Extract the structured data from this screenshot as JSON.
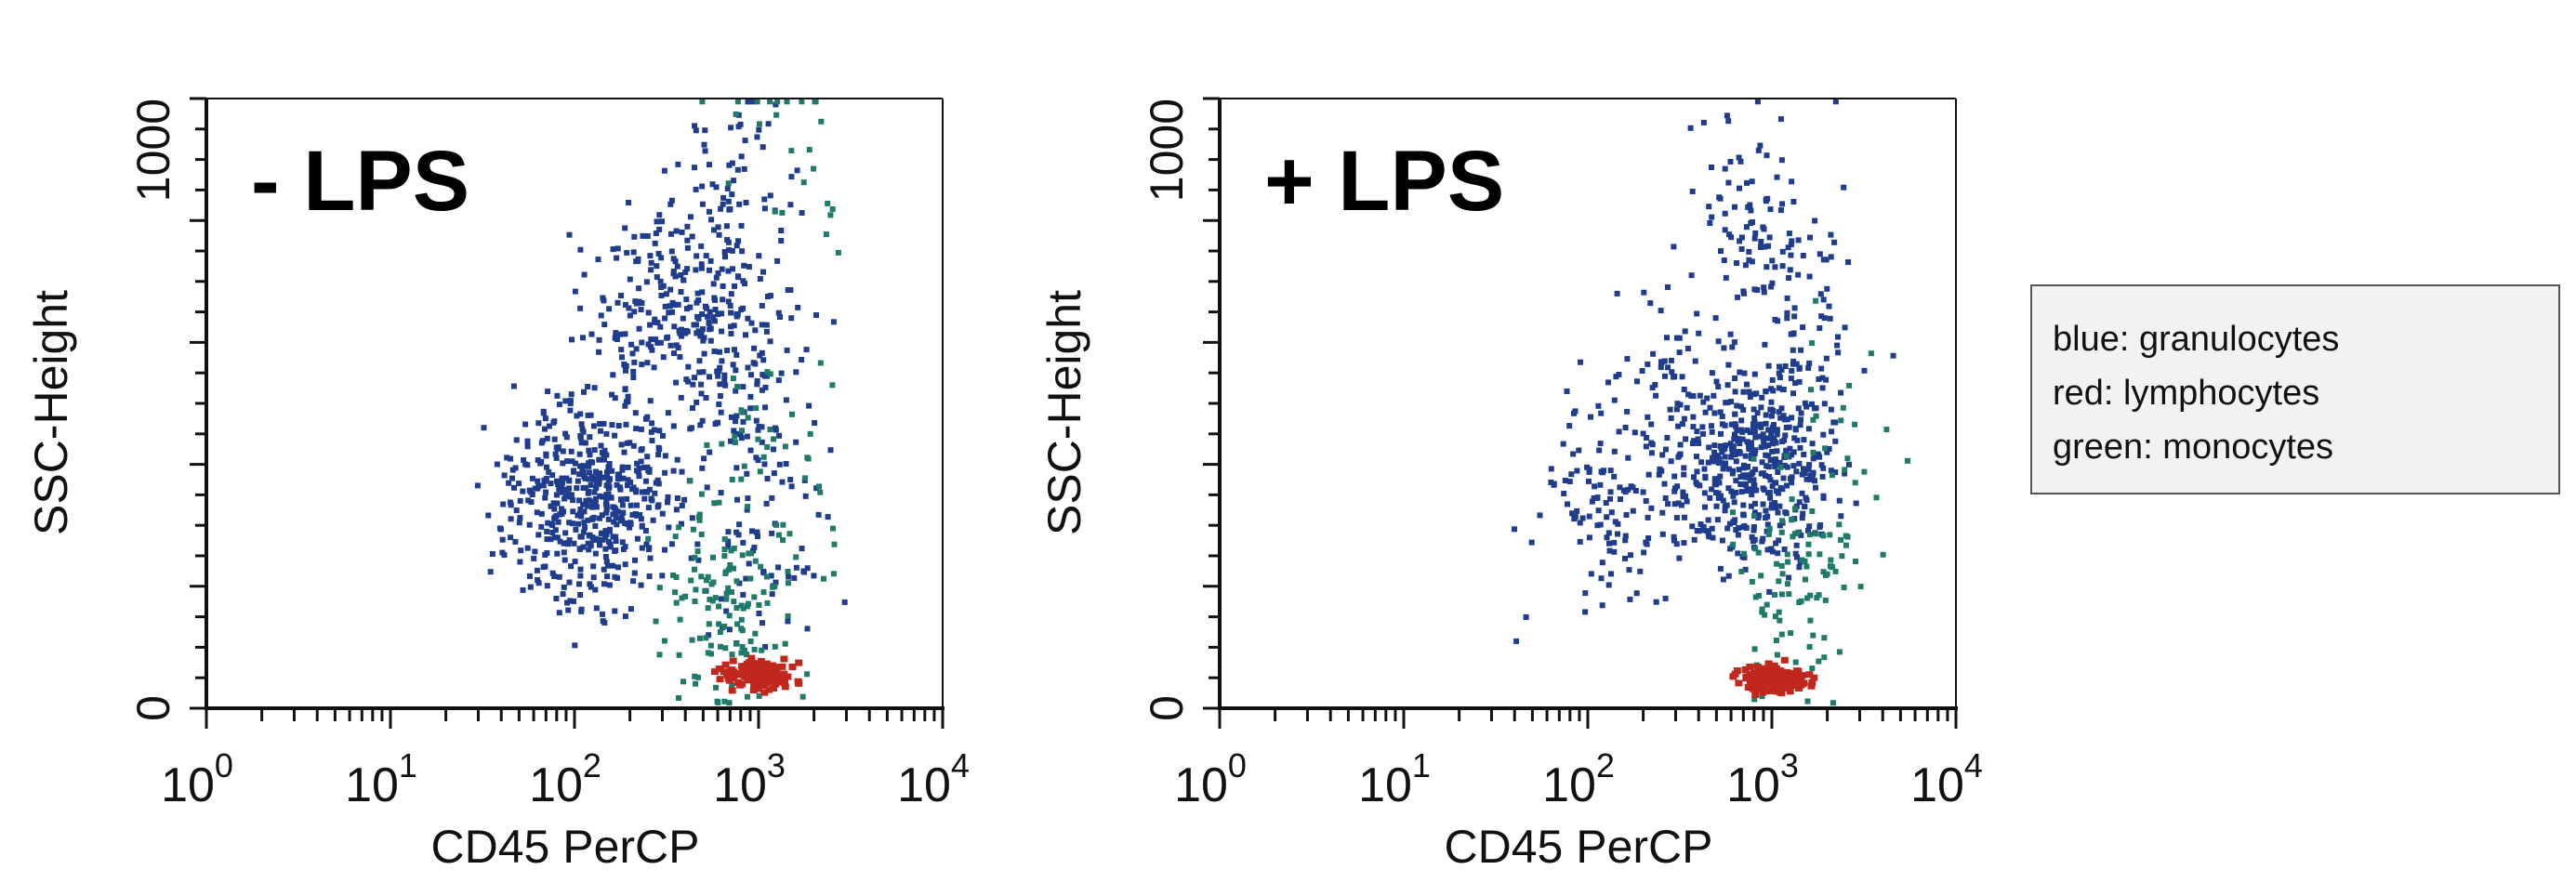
{
  "chart_data": [
    {
      "type": "scatter",
      "panel_label": "- LPS",
      "xlabel": "CD45 PerCP",
      "ylabel": "SSC-Height",
      "x_scale": "log",
      "xlim": [
        1,
        10000
      ],
      "ylim": [
        0,
        1000
      ],
      "x_ticks": [
        {
          "base": "10",
          "exp": "0"
        },
        {
          "base": "10",
          "exp": "1"
        },
        {
          "base": "10",
          "exp": "2"
        },
        {
          "base": "10",
          "exp": "3"
        },
        {
          "base": "10",
          "exp": "4"
        }
      ],
      "y_ticks": [
        "0",
        "1000"
      ],
      "series": [
        {
          "population": "granulocytes",
          "color": "#1f3d8c",
          "clusters": [
            {
              "x": 120,
              "y": 340,
              "count": 520
            },
            {
              "x": 450,
              "y": 640,
              "count": 190
            },
            {
              "x": 750,
              "y": 860,
              "count": 70
            },
            {
              "x": 1000,
              "y": 520,
              "count": 90
            },
            {
              "x": 200,
              "y": 620,
              "count": 80
            },
            {
              "x": 1100,
              "y": 260,
              "count": 60
            }
          ]
        },
        {
          "population": "monocytes",
          "color": "#1f7a6a",
          "clusters": [
            {
              "x": 650,
              "y": 170,
              "count": 130
            },
            {
              "x": 1200,
              "y": 420,
              "count": 40
            },
            {
              "x": 1500,
              "y": 900,
              "count": 25
            }
          ]
        },
        {
          "population": "lymphocytes",
          "color": "#c0281e",
          "clusters": [
            {
              "x": 1000,
              "y": 55,
              "count": 150
            }
          ]
        }
      ]
    },
    {
      "type": "scatter",
      "panel_label": "+ LPS",
      "xlabel": "CD45 PerCP",
      "ylabel": "SSC-Height",
      "x_scale": "log",
      "xlim": [
        1,
        10000
      ],
      "ylim": [
        0,
        1000
      ],
      "x_ticks": [
        {
          "base": "10",
          "exp": "0"
        },
        {
          "base": "10",
          "exp": "1"
        },
        {
          "base": "10",
          "exp": "2"
        },
        {
          "base": "10",
          "exp": "3"
        },
        {
          "base": "10",
          "exp": "4"
        }
      ],
      "y_ticks": [
        "0",
        "1000"
      ],
      "series": [
        {
          "population": "granulocytes",
          "color": "#1f3d8c",
          "clusters": [
            {
              "x": 800,
              "y": 400,
              "count": 480
            },
            {
              "x": 800,
              "y": 780,
              "count": 110
            },
            {
              "x": 120,
              "y": 330,
              "count": 110
            },
            {
              "x": 250,
              "y": 520,
              "count": 70
            },
            {
              "x": 1500,
              "y": 600,
              "count": 50
            }
          ]
        },
        {
          "population": "monocytes",
          "color": "#1f7a6a",
          "clusters": [
            {
              "x": 1350,
              "y": 210,
              "count": 90
            },
            {
              "x": 2000,
              "y": 420,
              "count": 30
            }
          ]
        },
        {
          "population": "lymphocytes",
          "color": "#c0281e",
          "clusters": [
            {
              "x": 1000,
              "y": 50,
              "count": 140
            }
          ]
        }
      ]
    }
  ],
  "legend": {
    "lines": [
      "blue:  granulocytes",
      "red: lymphocytes",
      "green: monocytes"
    ]
  }
}
